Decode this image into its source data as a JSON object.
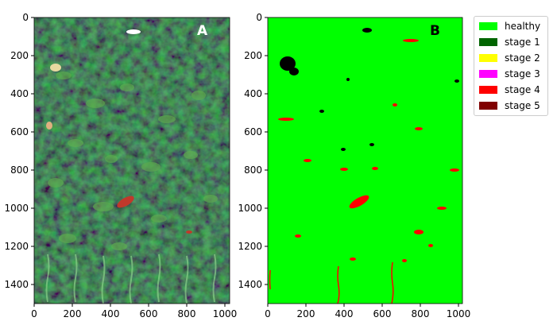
{
  "panels": [
    {
      "letter": "A",
      "xticks": [
        "0",
        "200",
        "400",
        "600",
        "800",
        "1000"
      ],
      "yticks": [
        "0",
        "200",
        "400",
        "600",
        "800",
        "1000",
        "1200",
        "1400"
      ]
    },
    {
      "letter": "B",
      "xticks": [
        "0",
        "200",
        "400",
        "600",
        "800",
        "1000"
      ],
      "yticks": [
        "0",
        "200",
        "400",
        "600",
        "800",
        "1000",
        "1200",
        "1400"
      ]
    }
  ],
  "legend": [
    {
      "label": "healthy",
      "color": "#00ff00"
    },
    {
      "label": "stage 1",
      "color": "#006400"
    },
    {
      "label": "stage 2",
      "color": "#ffff00"
    },
    {
      "label": "stage 3",
      "color": "#ff00ff"
    },
    {
      "label": "stage 4",
      "color": "#ff0000"
    },
    {
      "label": "stage 5",
      "color": "#800000"
    }
  ]
}
